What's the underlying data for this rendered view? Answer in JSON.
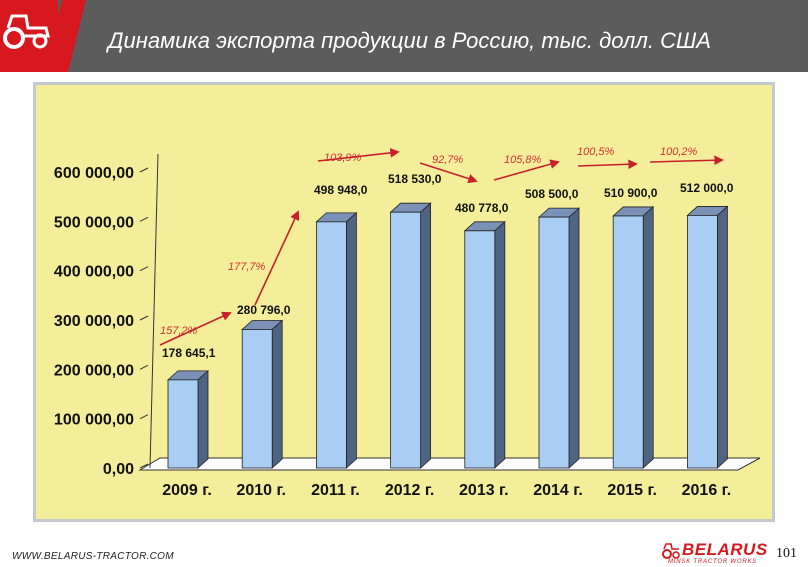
{
  "header": {
    "title": "Динамика экспорта продукции в Россию, тыс. долл. США"
  },
  "footer": {
    "url": "WWW.BELARUS-TRACTOR.COM",
    "brand": "BELARUS",
    "brand_sub": "MINSK TRACTOR WORKS",
    "page_number": "101"
  },
  "colors": {
    "header_bg": "#5c5c5c",
    "accent": "#d7191f",
    "plot_bg": "#f4ee9a",
    "bar_front": "#a9cdf3",
    "growth_label": "#d0332f"
  },
  "chart_data": {
    "type": "bar",
    "categories": [
      "2009 г.",
      "2010 г.",
      "2011 г.",
      "2012 г.",
      "2013 г.",
      "2014 г.",
      "2015 г.",
      "2016 г."
    ],
    "values": [
      178645.1,
      280796.0,
      498948.0,
      518530.0,
      480778.0,
      508500.0,
      510900.0,
      512000.0
    ],
    "value_labels": [
      "178 645,1",
      "280 796,0",
      "498 948,0",
      "518 530,0",
      "480 778,0",
      "508 500,0",
      "510 900,0",
      "512 000,0"
    ],
    "ytick_labels": [
      "0,00",
      "100 000,00",
      "200 000,00",
      "300 000,00",
      "400 000,00",
      "500 000,00",
      "600 000,00"
    ],
    "ylim": [
      0,
      600000
    ],
    "growth_labels": [
      "157,2%",
      "177,7%",
      "103,9%",
      "92,7%",
      "105,8%",
      "100,5%",
      "100,2%"
    ],
    "grid": false,
    "style": "3d-column"
  }
}
